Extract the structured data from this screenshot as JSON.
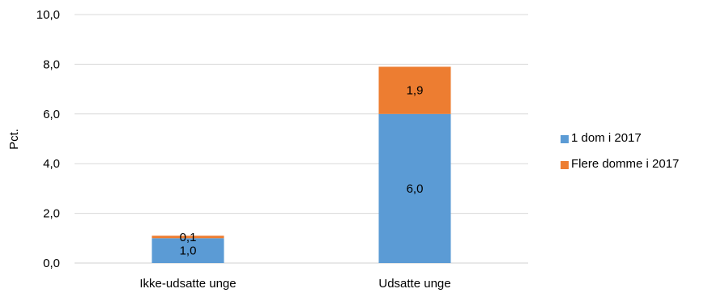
{
  "chart_data": {
    "type": "bar",
    "stacked": true,
    "title": "",
    "xlabel": "",
    "ylabel": "Pct.",
    "ylim": [
      0,
      10
    ],
    "yticks": [
      "0,0",
      "2,0",
      "4,0",
      "6,0",
      "8,0",
      "10,0"
    ],
    "categories": [
      "Ikke-udsatte unge",
      "Udsatte unge"
    ],
    "series": [
      {
        "name": "1 dom i 2017",
        "values": [
          1.0,
          6.0
        ],
        "labels": [
          "1,0",
          "6,0"
        ],
        "color": "#5b9bd5"
      },
      {
        "name": "Flere domme i 2017",
        "values": [
          0.1,
          1.9
        ],
        "labels": [
          "0,1",
          "1,9"
        ],
        "color": "#ed7d31"
      }
    ],
    "grid": true,
    "legend_position": "right"
  }
}
